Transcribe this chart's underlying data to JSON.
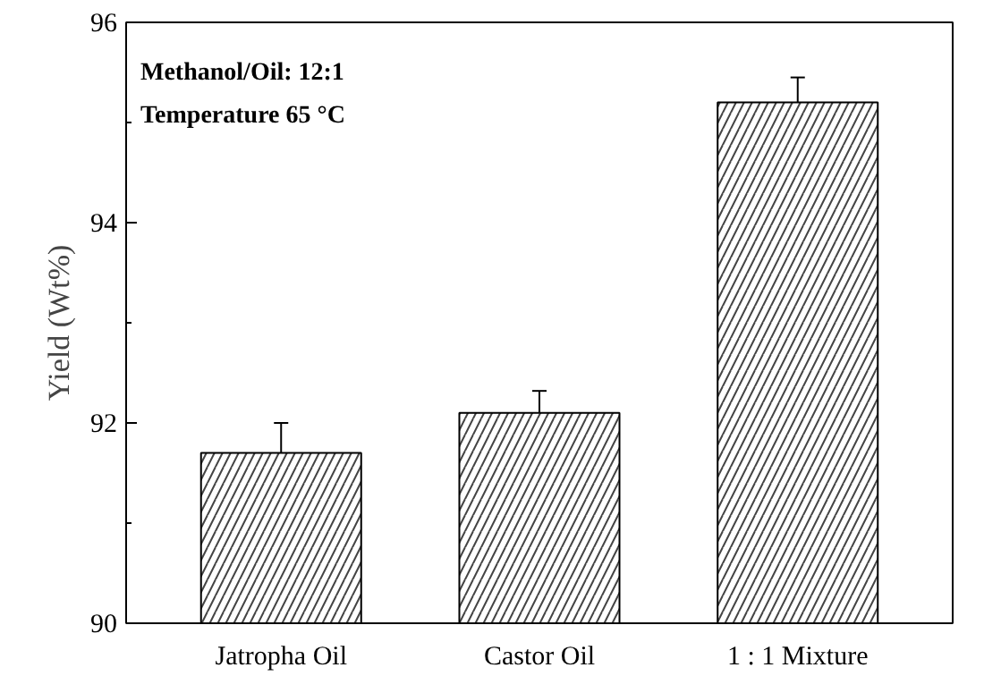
{
  "chart_data": {
    "type": "bar",
    "ylabel": "Yield (Wt%)",
    "categories": [
      "Jatropha Oil",
      "Castor Oil",
      "1 : 1 Mixture"
    ],
    "values": [
      91.7,
      92.1,
      95.2
    ],
    "errors": [
      0.3,
      0.22,
      0.25
    ],
    "color": "#ffffff",
    "ylim": [
      90,
      96
    ],
    "yticks": [
      90,
      {
        "value": 91,
        "label": null
      },
      92,
      {
        "value": 93,
        "label": null
      },
      94,
      {
        "value": 95,
        "label": null
      },
      96
    ],
    "annotations": [
      "Methanol/Oil: 12:1",
      "Temperature 65 °C"
    ],
    "grid": false
  }
}
